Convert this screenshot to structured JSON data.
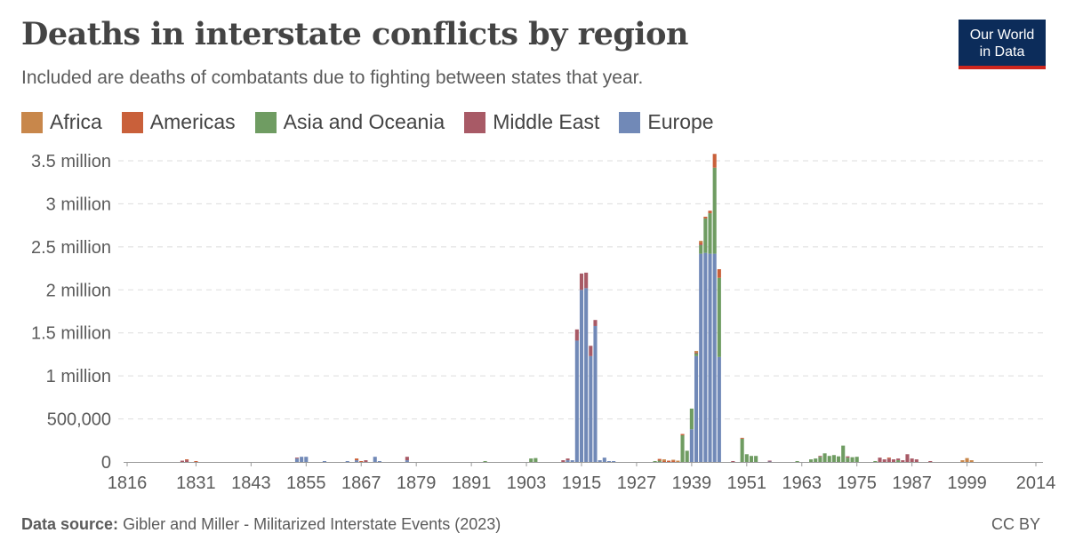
{
  "header": {
    "title": "Deaths in interstate conflicts by region",
    "subtitle": "Included are deaths of combatants due to fighting between states that year.",
    "logo_line1": "Our World",
    "logo_line2": "in Data"
  },
  "footer": {
    "source_label": "Data source:",
    "source_text": "Gibler and Miller - Militarized Interstate Events (2023)",
    "license": "CC BY"
  },
  "colors": {
    "Africa": "#c8874b",
    "Americas": "#c9603a",
    "Asia and Oceania": "#6f9c62",
    "Middle East": "#a85a66",
    "Europe": "#7189b7"
  },
  "chart_data": {
    "type": "bar",
    "stacked": true,
    "x_range": [
      1816,
      2014
    ],
    "ylim": [
      0,
      3500000
    ],
    "y_ticks": [
      0,
      500000,
      1000000,
      1500000,
      2000000,
      2500000,
      3000000,
      3500000
    ],
    "y_tick_labels": [
      "0",
      "500,000",
      "1 million",
      "1.5 million",
      "2 million",
      "2.5 million",
      "3 million",
      "3.5 million"
    ],
    "x_ticks": [
      1816,
      1831,
      1843,
      1855,
      1867,
      1879,
      1891,
      1903,
      1915,
      1927,
      1939,
      1951,
      1963,
      1975,
      1987,
      1999,
      2014
    ],
    "legend_position": "top",
    "grid": "horizontal dashed",
    "series": [
      {
        "name": "Africa",
        "points": [
          [
            1933,
            20000
          ],
          [
            1935,
            10000
          ],
          [
            1936,
            15000
          ],
          [
            1940,
            20000
          ],
          [
            1941,
            20000
          ],
          [
            1998,
            20000
          ],
          [
            1999,
            45000
          ],
          [
            2000,
            20000
          ]
        ]
      },
      {
        "name": "Americas",
        "points": [
          [
            1829,
            5000
          ],
          [
            1831,
            10000
          ],
          [
            1866,
            20000
          ],
          [
            1867,
            10000
          ],
          [
            1932,
            20000
          ],
          [
            1933,
            10000
          ],
          [
            1934,
            15000
          ],
          [
            1935,
            15000
          ],
          [
            1937,
            15000
          ],
          [
            1941,
            20000
          ],
          [
            1942,
            20000
          ],
          [
            1943,
            30000
          ],
          [
            1944,
            160000
          ],
          [
            1945,
            100000
          ],
          [
            1950,
            10000
          ],
          [
            1982,
            5000
          ]
        ]
      },
      {
        "name": "Asia and Oceania",
        "points": [
          [
            1894,
            10000
          ],
          [
            1904,
            40000
          ],
          [
            1905,
            45000
          ],
          [
            1931,
            10000
          ],
          [
            1932,
            15000
          ],
          [
            1937,
            310000
          ],
          [
            1938,
            130000
          ],
          [
            1939,
            240000
          ],
          [
            1940,
            30000
          ],
          [
            1941,
            100000
          ],
          [
            1942,
            400000
          ],
          [
            1943,
            470000
          ],
          [
            1944,
            1000000
          ],
          [
            1945,
            920000
          ],
          [
            1950,
            270000
          ],
          [
            1951,
            90000
          ],
          [
            1952,
            70000
          ],
          [
            1953,
            70000
          ],
          [
            1962,
            10000
          ],
          [
            1965,
            30000
          ],
          [
            1966,
            40000
          ],
          [
            1967,
            60000
          ],
          [
            1968,
            100000
          ],
          [
            1969,
            70000
          ],
          [
            1970,
            80000
          ],
          [
            1971,
            65000
          ],
          [
            1972,
            190000
          ],
          [
            1973,
            50000
          ],
          [
            1974,
            55000
          ],
          [
            1975,
            60000
          ],
          [
            1979,
            10000
          ],
          [
            1984,
            20000
          ]
        ]
      },
      {
        "name": "Middle East",
        "points": [
          [
            1828,
            15000
          ],
          [
            1829,
            20000
          ],
          [
            1853,
            10000
          ],
          [
            1868,
            20000
          ],
          [
            1877,
            40000
          ],
          [
            1911,
            20000
          ],
          [
            1912,
            20000
          ],
          [
            1914,
            130000
          ],
          [
            1915,
            190000
          ],
          [
            1916,
            180000
          ],
          [
            1917,
            120000
          ],
          [
            1918,
            70000
          ],
          [
            1940,
            10000
          ],
          [
            1941,
            10000
          ],
          [
            1948,
            10000
          ],
          [
            1956,
            5000
          ],
          [
            1967,
            10000
          ],
          [
            1973,
            15000
          ],
          [
            1980,
            50000
          ],
          [
            1981,
            30000
          ],
          [
            1982,
            40000
          ],
          [
            1983,
            30000
          ],
          [
            1984,
            20000
          ],
          [
            1985,
            20000
          ],
          [
            1986,
            90000
          ],
          [
            1987,
            40000
          ],
          [
            1988,
            30000
          ],
          [
            1991,
            5000
          ]
        ]
      },
      {
        "name": "Europe",
        "points": [
          [
            1853,
            40000
          ],
          [
            1854,
            60000
          ],
          [
            1855,
            60000
          ],
          [
            1859,
            10000
          ],
          [
            1864,
            5000
          ],
          [
            1866,
            20000
          ],
          [
            1870,
            60000
          ],
          [
            1871,
            10000
          ],
          [
            1877,
            20000
          ],
          [
            1912,
            20000
          ],
          [
            1913,
            20000
          ],
          [
            1914,
            1410000
          ],
          [
            1915,
            2000000
          ],
          [
            1916,
            2020000
          ],
          [
            1917,
            1230000
          ],
          [
            1918,
            1580000
          ],
          [
            1919,
            20000
          ],
          [
            1920,
            50000
          ],
          [
            1921,
            10000
          ],
          [
            1922,
            10000
          ],
          [
            1939,
            380000
          ],
          [
            1940,
            1230000
          ],
          [
            1941,
            2420000
          ],
          [
            1942,
            2430000
          ],
          [
            1943,
            2420000
          ],
          [
            1944,
            2420000
          ],
          [
            1945,
            1220000
          ],
          [
            1956,
            5000
          ]
        ]
      }
    ]
  }
}
